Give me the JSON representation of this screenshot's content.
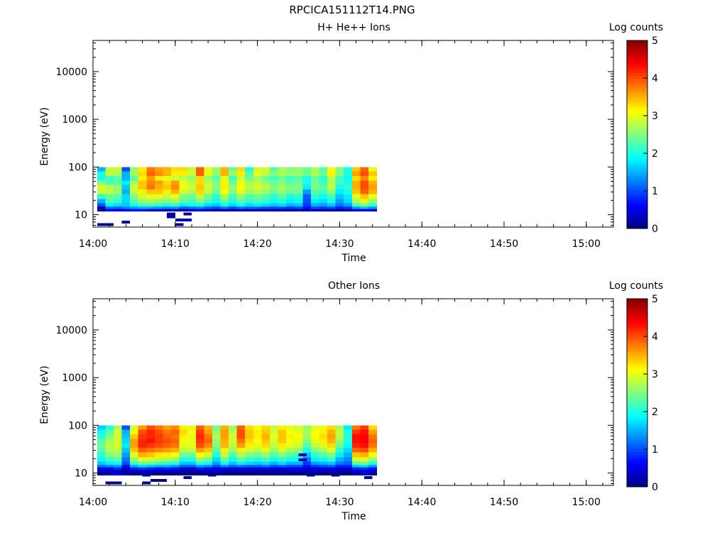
{
  "figure_title": "RPCICA151112T14.PNG",
  "chart_data": [
    {
      "type": "heatmap",
      "title": "H+ He++ Ions",
      "xlabel": "Time",
      "ylabel": "Energy (eV)",
      "x_ticks": [
        "14:00",
        "14:10",
        "14:20",
        "14:30",
        "14:40",
        "14:50",
        "15:00"
      ],
      "x_tick_minutes": [
        0,
        10,
        20,
        30,
        40,
        50,
        60
      ],
      "xlim_minutes": [
        0,
        63.3
      ],
      "y_scale": "log",
      "ylim": [
        5.5,
        45000
      ],
      "y_ticks": [
        10,
        100,
        1000,
        10000
      ],
      "y_tick_labels": [
        "10",
        "100",
        "1000",
        "10000"
      ],
      "colorbar": {
        "label": "Log counts",
        "range": [
          0,
          5
        ],
        "ticks": [
          "0",
          "1",
          "2",
          "3",
          "4",
          "5"
        ],
        "colormap": "jet"
      },
      "data_extent": {
        "time_minutes": [
          0.5,
          34.5
        ],
        "energy_ev": [
          12,
          100
        ]
      },
      "bins": 34,
      "energy_rows_ev": [
        90,
        72,
        58,
        47,
        38,
        30,
        24,
        19,
        16,
        14,
        12.5
      ],
      "log_counts": [
        [
          1.5,
          2.0,
          2.0,
          2.5,
          2.9,
          2.9,
          2.1,
          1.5,
          1.0,
          0.3,
          0.0
        ],
        [
          2.8,
          2.8,
          2.2,
          2.2,
          2.8,
          2.8,
          2.4,
          2.2,
          1.8,
          1.2,
          0.6
        ],
        [
          2.9,
          2.7,
          2.3,
          2.3,
          2.6,
          2.6,
          2.3,
          2.1,
          1.7,
          1.1,
          0.5
        ],
        [
          1.0,
          1.5,
          1.5,
          1.8,
          1.6,
          1.5,
          1.7,
          1.7,
          1.6,
          1.3,
          0.5
        ],
        [
          2.6,
          2.7,
          2.3,
          2.7,
          2.9,
          2.8,
          2.5,
          2.3,
          1.9,
          1.4,
          0.7
        ],
        [
          3.2,
          3.3,
          3.2,
          3.4,
          3.4,
          3.2,
          2.9,
          2.6,
          2.2,
          1.5,
          0.7
        ],
        [
          3.8,
          3.9,
          3.6,
          3.7,
          3.8,
          3.4,
          3.0,
          2.7,
          2.2,
          1.5,
          0.3
        ],
        [
          3.6,
          3.7,
          3.2,
          3.6,
          3.5,
          3.4,
          3.0,
          2.6,
          2.1,
          1.4,
          0.4
        ],
        [
          3.5,
          3.5,
          3.0,
          3.3,
          3.4,
          3.2,
          2.8,
          2.5,
          2.0,
          1.3,
          0.2
        ],
        [
          3.3,
          3.2,
          2.9,
          3.6,
          3.7,
          3.5,
          3.0,
          2.7,
          2.1,
          1.4,
          0.3
        ],
        [
          3.3,
          3.2,
          2.8,
          3.0,
          3.1,
          2.9,
          2.5,
          2.3,
          1.8,
          1.1,
          0.2
        ],
        [
          2.8,
          2.9,
          2.6,
          2.8,
          2.9,
          2.7,
          2.4,
          2.2,
          1.9,
          1.2,
          0.4
        ],
        [
          3.9,
          3.9,
          3.3,
          3.3,
          3.4,
          3.3,
          2.8,
          2.5,
          2.0,
          1.3,
          0.4
        ],
        [
          3.0,
          3.0,
          2.6,
          2.8,
          2.9,
          2.8,
          2.4,
          2.2,
          1.7,
          1.1,
          0.3
        ],
        [
          2.6,
          2.6,
          2.3,
          2.5,
          2.5,
          2.4,
          2.1,
          1.9,
          1.6,
          1.0,
          0.2
        ],
        [
          3.5,
          3.5,
          3.0,
          3.2,
          3.2,
          3.1,
          2.7,
          2.4,
          1.9,
          1.2,
          0.2
        ],
        [
          2.4,
          2.6,
          2.2,
          2.4,
          2.6,
          2.5,
          2.2,
          2.0,
          1.7,
          1.0,
          0.2
        ],
        [
          3.3,
          3.2,
          2.9,
          3.0,
          3.1,
          3.0,
          2.6,
          2.3,
          1.9,
          1.2,
          0.3
        ],
        [
          2.0,
          2.3,
          2.4,
          2.7,
          2.8,
          2.6,
          2.3,
          2.1,
          1.7,
          1.1,
          0.3
        ],
        [
          2.9,
          3.0,
          2.7,
          2.8,
          2.9,
          2.8,
          2.4,
          2.2,
          1.8,
          1.1,
          0.3
        ],
        [
          2.9,
          2.8,
          2.4,
          2.6,
          2.8,
          2.6,
          2.3,
          2.1,
          1.7,
          1.0,
          0.3
        ],
        [
          2.3,
          2.5,
          2.2,
          2.4,
          2.5,
          2.4,
          2.1,
          1.9,
          1.6,
          1.0,
          0.2
        ],
        [
          2.7,
          2.7,
          2.4,
          2.5,
          2.7,
          2.6,
          2.3,
          2.1,
          1.7,
          1.0,
          0.2
        ],
        [
          2.5,
          2.6,
          2.2,
          2.3,
          2.5,
          2.4,
          2.0,
          1.8,
          1.5,
          0.9,
          0.2
        ],
        [
          2.6,
          2.6,
          2.3,
          2.4,
          2.5,
          2.4,
          2.1,
          1.9,
          1.6,
          1.0,
          0.3
        ],
        [
          2.4,
          2.4,
          2.0,
          2.0,
          1.8,
          1.4,
          1.1,
          1.0,
          0.9,
          0.7,
          0.2
        ],
        [
          2.7,
          2.7,
          2.4,
          2.4,
          2.5,
          2.3,
          2.1,
          1.8,
          1.5,
          1.0,
          0.3
        ],
        [
          2.3,
          2.4,
          2.1,
          2.2,
          2.3,
          2.2,
          1.9,
          1.7,
          1.4,
          0.9,
          0.2
        ],
        [
          3.1,
          3.2,
          2.8,
          2.7,
          2.8,
          2.6,
          2.2,
          2.0,
          1.6,
          1.0,
          0.2
        ],
        [
          2.5,
          2.5,
          2.2,
          2.2,
          2.0,
          1.8,
          1.6,
          1.4,
          1.2,
          0.8,
          0.1
        ],
        [
          2.0,
          2.0,
          1.9,
          2.0,
          2.1,
          2.0,
          1.8,
          1.7,
          1.4,
          0.9,
          0.2
        ],
        [
          3.4,
          3.6,
          3.3,
          3.5,
          3.5,
          3.4,
          3.0,
          2.7,
          2.2,
          1.4,
          0.4
        ],
        [
          3.9,
          4.0,
          3.7,
          4.0,
          4.0,
          3.9,
          3.4,
          3.0,
          2.5,
          1.6,
          0.5
        ],
        [
          3.0,
          3.4,
          3.2,
          3.5,
          3.6,
          3.5,
          3.0,
          2.6,
          2.1,
          1.4,
          0.4
        ]
      ],
      "low_energy_specks": [
        {
          "time_minutes": 1.0,
          "energy_ev": 6.2,
          "log_counts": 0.1
        },
        {
          "time_minutes": 2.0,
          "energy_ev": 6.2,
          "log_counts": 0.1
        },
        {
          "time_minutes": 4.0,
          "energy_ev": 7.0,
          "log_counts": 0.2
        },
        {
          "time_minutes": 9.5,
          "energy_ev": 10.3,
          "log_counts": 0.2
        },
        {
          "time_minutes": 9.5,
          "energy_ev": 9.0,
          "log_counts": 0.1
        },
        {
          "time_minutes": 10.5,
          "energy_ev": 7.8,
          "log_counts": 0.2
        },
        {
          "time_minutes": 11.5,
          "energy_ev": 7.8,
          "log_counts": 0.2
        },
        {
          "time_minutes": 11.5,
          "energy_ev": 10.3,
          "log_counts": 0.1
        },
        {
          "time_minutes": 10.5,
          "energy_ev": 6.2,
          "log_counts": 0.1
        }
      ]
    },
    {
      "type": "heatmap",
      "title": "Other Ions",
      "xlabel": "Time",
      "ylabel": "Energy (eV)",
      "x_ticks": [
        "14:00",
        "14:10",
        "14:20",
        "14:30",
        "14:40",
        "14:50",
        "15:00"
      ],
      "x_tick_minutes": [
        0,
        10,
        20,
        30,
        40,
        50,
        60
      ],
      "xlim_minutes": [
        0,
        63.3
      ],
      "y_scale": "log",
      "ylim": [
        5.5,
        45000
      ],
      "y_ticks": [
        10,
        100,
        1000,
        10000
      ],
      "y_tick_labels": [
        "10",
        "100",
        "1000",
        "10000"
      ],
      "colorbar": {
        "label": "Log counts",
        "range": [
          0,
          5
        ],
        "ticks": [
          "0",
          "1",
          "2",
          "3",
          "4",
          "5"
        ],
        "colormap": "jet"
      },
      "data_extent": {
        "time_minutes": [
          0.5,
          34.5
        ],
        "energy_ev": [
          9,
          100
        ]
      },
      "bins": 34,
      "energy_rows_ev": [
        90,
        72,
        58,
        47,
        38,
        30,
        24,
        19,
        16,
        14,
        12.5,
        11,
        9.5
      ],
      "log_counts": [
        [
          1.6,
          1.9,
          2.1,
          2.3,
          2.4,
          2.3,
          2.1,
          1.9,
          1.6,
          1.2,
          0.6,
          0.3,
          0.1
        ],
        [
          2.0,
          2.3,
          2.5,
          2.7,
          2.8,
          2.7,
          2.5,
          2.2,
          1.8,
          1.3,
          0.6,
          0.2,
          0.3
        ],
        [
          2.7,
          2.9,
          2.9,
          2.9,
          2.9,
          2.8,
          2.6,
          2.3,
          1.9,
          1.4,
          0.8,
          0.3,
          0.4
        ],
        [
          1.0,
          1.5,
          1.6,
          1.7,
          1.8,
          1.6,
          1.4,
          1.2,
          1.0,
          0.7,
          0.3,
          0.1,
          0.3
        ],
        [
          2.9,
          3.1,
          3.4,
          3.6,
          3.6,
          3.4,
          3.0,
          2.6,
          2.1,
          1.5,
          0.8,
          0.3,
          0.0
        ],
        [
          3.6,
          4.0,
          4.1,
          4.2,
          4.2,
          3.9,
          3.5,
          3.0,
          2.4,
          1.7,
          0.9,
          0.4,
          0.0
        ],
        [
          4.0,
          4.2,
          4.2,
          4.3,
          4.1,
          3.8,
          3.4,
          2.9,
          2.3,
          1.6,
          0.8,
          0.3,
          0.1
        ],
        [
          3.8,
          4.0,
          4.1,
          4.1,
          4.0,
          3.7,
          3.2,
          2.8,
          2.2,
          1.5,
          0.7,
          0.3,
          0.0
        ],
        [
          3.6,
          3.8,
          3.9,
          4.0,
          3.9,
          3.6,
          3.2,
          2.7,
          2.1,
          1.5,
          0.8,
          0.3,
          0.0
        ],
        [
          3.7,
          3.9,
          3.8,
          3.9,
          3.8,
          3.5,
          3.1,
          2.6,
          2.0,
          1.4,
          0.7,
          0.3,
          0.1
        ],
        [
          3.2,
          3.3,
          3.2,
          3.1,
          3.0,
          2.8,
          2.4,
          2.0,
          1.6,
          1.1,
          0.5,
          0.2,
          0.0
        ],
        [
          3.0,
          3.1,
          3.0,
          3.0,
          3.0,
          2.8,
          2.4,
          2.0,
          1.6,
          1.1,
          0.5,
          0.1,
          0.0
        ],
        [
          3.9,
          4.1,
          4.2,
          4.1,
          4.0,
          3.6,
          3.1,
          2.6,
          2.0,
          1.4,
          0.7,
          0.3,
          0.0
        ],
        [
          3.5,
          3.6,
          3.8,
          3.9,
          3.7,
          3.4,
          2.9,
          2.4,
          1.9,
          1.3,
          0.6,
          0.2,
          0.0
        ],
        [
          2.4,
          2.6,
          2.7,
          2.6,
          2.5,
          2.3,
          2.0,
          1.7,
          1.4,
          1.0,
          0.5,
          0.2,
          0.0
        ],
        [
          3.5,
          3.6,
          3.6,
          3.5,
          3.5,
          3.2,
          2.8,
          2.4,
          1.9,
          1.3,
          0.6,
          0.3,
          0.1
        ],
        [
          2.6,
          2.8,
          2.9,
          2.9,
          2.8,
          2.6,
          2.3,
          1.9,
          1.6,
          1.1,
          0.5,
          0.2,
          0.0
        ],
        [
          3.9,
          4.0,
          4.0,
          3.8,
          3.6,
          3.2,
          2.7,
          2.3,
          1.8,
          1.2,
          0.6,
          0.2,
          0.0
        ],
        [
          3.3,
          3.4,
          3.4,
          3.3,
          3.2,
          2.9,
          2.5,
          2.1,
          1.7,
          1.1,
          0.5,
          0.2,
          0.0
        ],
        [
          3.1,
          3.2,
          3.2,
          3.1,
          3.0,
          2.8,
          2.4,
          2.0,
          1.6,
          1.1,
          0.5,
          0.2,
          0.0
        ],
        [
          3.3,
          3.4,
          3.5,
          3.4,
          3.3,
          3.0,
          2.6,
          2.2,
          1.7,
          1.2,
          0.6,
          0.2,
          0.0
        ],
        [
          2.8,
          2.9,
          3.0,
          2.9,
          2.8,
          2.6,
          2.3,
          1.9,
          1.5,
          1.0,
          0.5,
          0.1,
          0.1
        ],
        [
          3.2,
          3.4,
          3.4,
          3.4,
          3.2,
          2.9,
          2.5,
          2.1,
          1.7,
          1.1,
          0.5,
          0.2,
          0.0
        ],
        [
          3.0,
          3.1,
          3.2,
          3.1,
          3.0,
          2.7,
          2.3,
          1.9,
          1.5,
          1.0,
          0.5,
          0.2,
          0.0
        ],
        [
          2.9,
          3.0,
          3.1,
          3.0,
          2.9,
          2.6,
          2.2,
          1.9,
          1.5,
          1.0,
          0.6,
          0.3,
          0.0
        ],
        [
          2.6,
          2.7,
          2.6,
          2.5,
          2.3,
          2.0,
          1.6,
          1.2,
          0.9,
          0.7,
          0.4,
          0.2,
          0.1
        ],
        [
          3.0,
          3.1,
          3.1,
          3.0,
          2.8,
          2.5,
          2.1,
          1.8,
          1.4,
          0.9,
          0.5,
          0.3,
          0.0
        ],
        [
          3.0,
          3.2,
          3.3,
          3.2,
          3.0,
          2.7,
          2.3,
          1.9,
          1.5,
          1.0,
          0.5,
          0.2,
          0.0
        ],
        [
          3.3,
          3.5,
          3.6,
          3.5,
          3.3,
          3.0,
          2.5,
          2.1,
          1.6,
          1.1,
          0.5,
          0.2,
          0.0
        ],
        [
          2.7,
          2.8,
          2.8,
          2.6,
          2.4,
          2.1,
          1.8,
          1.5,
          1.2,
          0.8,
          0.4,
          0.2,
          0.0
        ],
        [
          1.8,
          2.0,
          2.1,
          2.0,
          1.9,
          1.7,
          1.5,
          1.3,
          1.1,
          0.8,
          0.4,
          0.2,
          0.0
        ],
        [
          3.8,
          4.1,
          4.3,
          4.3,
          4.2,
          3.9,
          3.4,
          2.9,
          2.3,
          1.6,
          0.8,
          0.4,
          0.2
        ],
        [
          4.1,
          4.3,
          4.4,
          4.4,
          4.3,
          4.0,
          3.5,
          3.0,
          2.4,
          1.7,
          0.9,
          0.4,
          0.3
        ],
        [
          3.3,
          3.6,
          3.8,
          3.9,
          3.8,
          3.5,
          3.1,
          2.6,
          2.0,
          1.4,
          0.7,
          0.3,
          0.1
        ]
      ],
      "low_energy_specks": [
        {
          "time_minutes": 2.0,
          "energy_ev": 6.2,
          "log_counts": 0.1
        },
        {
          "time_minutes": 3.0,
          "energy_ev": 6.2,
          "log_counts": 0.1
        },
        {
          "time_minutes": 4.0,
          "energy_ev": 11.0,
          "log_counts": 0.1
        },
        {
          "time_minutes": 6.5,
          "energy_ev": 9.0,
          "log_counts": 0.2
        },
        {
          "time_minutes": 6.5,
          "energy_ev": 6.2,
          "log_counts": 0.1
        },
        {
          "time_minutes": 7.5,
          "energy_ev": 7.0,
          "log_counts": 0.1
        },
        {
          "time_minutes": 8.5,
          "energy_ev": 7.0,
          "log_counts": 0.1
        },
        {
          "time_minutes": 11.5,
          "energy_ev": 8.0,
          "log_counts": 0.2
        },
        {
          "time_minutes": 11.0,
          "energy_ev": 11.0,
          "log_counts": 0.1
        },
        {
          "time_minutes": 14.5,
          "energy_ev": 9.0,
          "log_counts": 0.2
        },
        {
          "time_minutes": 16.5,
          "energy_ev": 11.0,
          "log_counts": 0.1
        },
        {
          "time_minutes": 20.5,
          "energy_ev": 11.0,
          "log_counts": 0.1
        },
        {
          "time_minutes": 23.5,
          "energy_ev": 9.5,
          "log_counts": 0.1
        },
        {
          "time_minutes": 25.5,
          "energy_ev": 19.0,
          "log_counts": 0.2
        },
        {
          "time_minutes": 25.5,
          "energy_ev": 24.0,
          "log_counts": 0.3
        },
        {
          "time_minutes": 26.5,
          "energy_ev": 9.0,
          "log_counts": 0.1
        },
        {
          "time_minutes": 29.5,
          "energy_ev": 9.0,
          "log_counts": 0.1
        },
        {
          "time_minutes": 33.5,
          "energy_ev": 8.0,
          "log_counts": 0.2
        }
      ]
    }
  ]
}
